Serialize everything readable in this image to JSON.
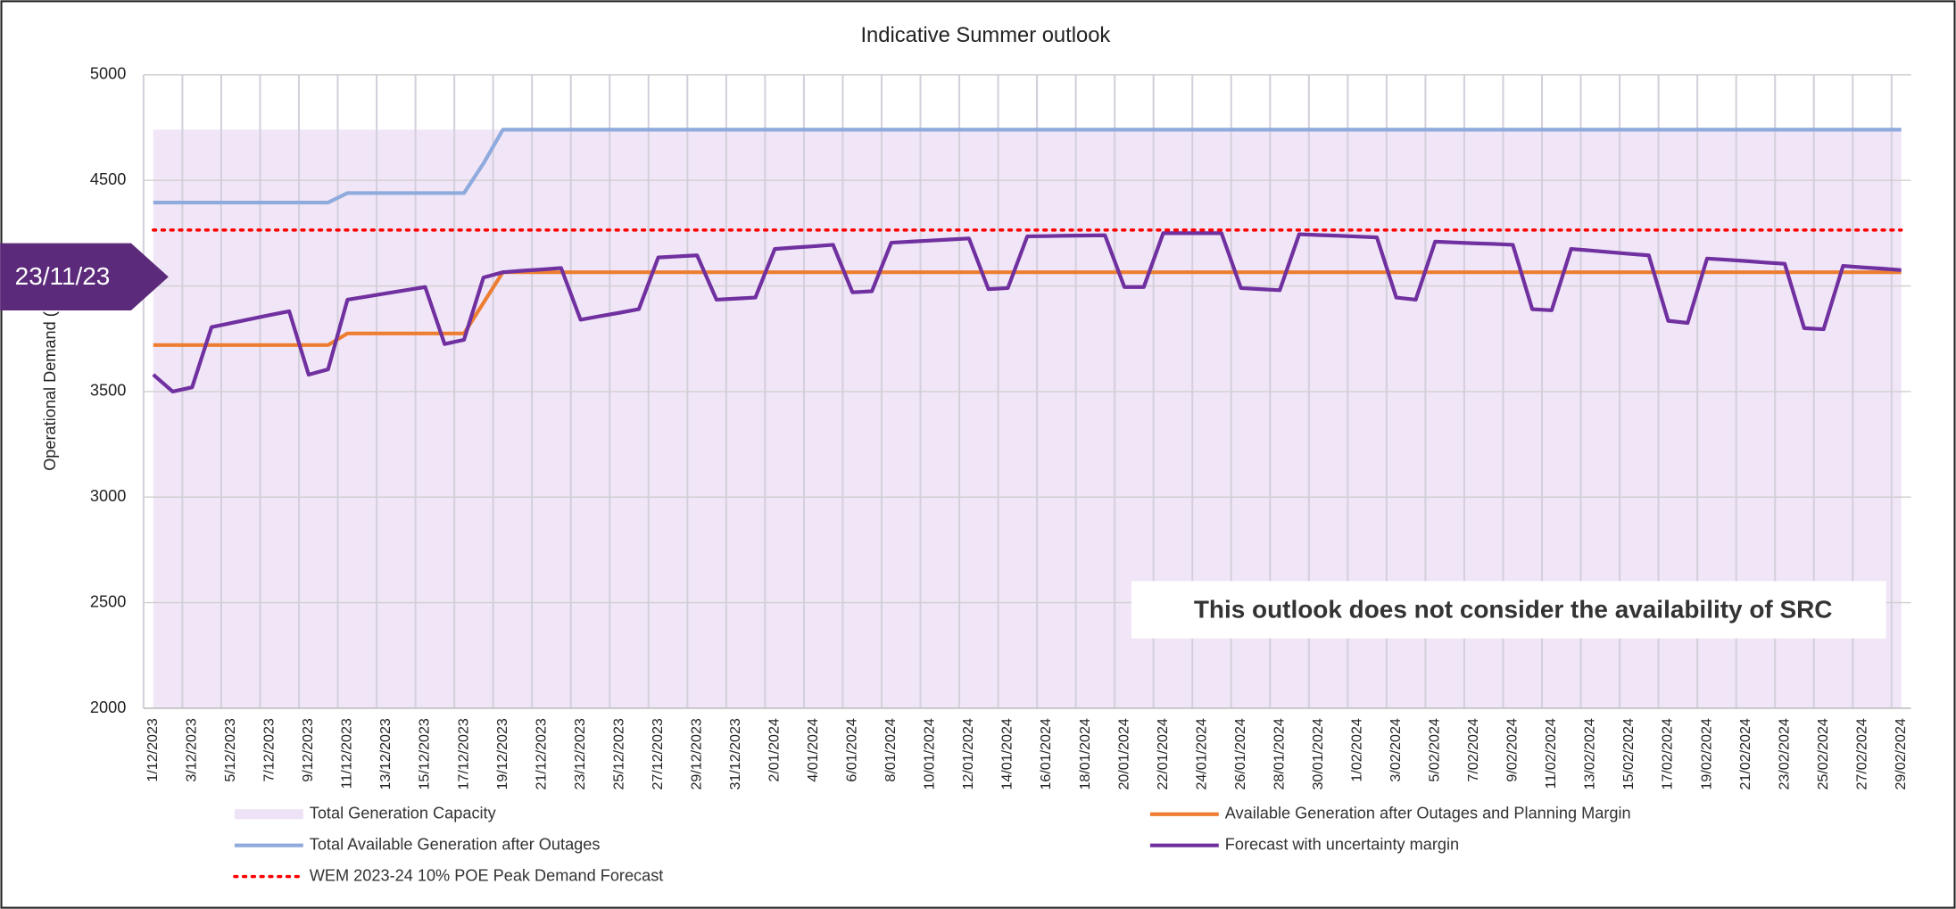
{
  "chart_data": {
    "type": "line",
    "title": "Indicative Summer outlook",
    "y_label": "Operational Demand (MW)",
    "ylim": [
      2000,
      5000
    ],
    "yticks": [
      2000,
      2500,
      3000,
      3500,
      4000,
      4500,
      5000
    ],
    "grid": true,
    "annotations": [
      "23/11/23",
      "This outlook does not consider the availability of SRC"
    ],
    "categories": [
      "1/12/2023",
      null,
      "3/12/2023",
      null,
      "5/12/2023",
      null,
      "7/12/2023",
      null,
      "9/12/2023",
      null,
      "11/12/2023",
      null,
      "13/12/2023",
      null,
      "15/12/2023",
      null,
      "17/12/2023",
      null,
      "19/12/2023",
      null,
      "21/12/2023",
      null,
      "23/12/2023",
      null,
      "25/12/2023",
      null,
      "27/12/2023",
      null,
      "29/12/2023",
      null,
      "31/12/2023",
      null,
      "2/01/2024",
      null,
      "4/01/2024",
      null,
      "6/01/2024",
      null,
      "8/01/2024",
      null,
      "10/01/2024",
      null,
      "12/01/2024",
      null,
      "14/01/2024",
      null,
      "16/01/2024",
      null,
      "18/01/2024",
      null,
      "20/01/2024",
      null,
      "22/01/2024",
      null,
      "24/01/2024",
      null,
      "26/01/2024",
      null,
      "28/01/2024",
      null,
      "30/01/2024",
      null,
      "1/02/2024",
      null,
      "3/02/2024",
      null,
      "5/02/2024",
      null,
      "7/02/2024",
      null,
      "9/02/2024",
      null,
      "11/02/2024",
      null,
      "13/02/2024",
      null,
      "15/02/2024",
      null,
      "17/02/2024",
      null,
      "19/02/2024",
      null,
      "21/02/2024",
      null,
      "23/02/2024",
      null,
      "25/02/2024",
      null,
      "27/02/2024",
      null,
      "29/02/2024"
    ],
    "series": [
      {
        "name": "Total Generation Capacity",
        "kind": "area",
        "color": "#eee2f6",
        "values": [
          4740,
          4740,
          4740,
          4740,
          4740,
          4740,
          4740,
          4740,
          4740,
          4740,
          4740,
          4740,
          4740,
          4740,
          4740,
          4740,
          4740,
          4740,
          4740,
          4740,
          4740,
          4740,
          4740,
          4740,
          4740,
          4740,
          4740,
          4740,
          4740,
          4740,
          4740,
          4740,
          4740,
          4740,
          4740,
          4740,
          4740,
          4740,
          4740,
          4740,
          4740,
          4740,
          4740,
          4740,
          4740,
          4740,
          4740,
          4740,
          4740,
          4740,
          4740,
          4740,
          4740,
          4740,
          4740,
          4740,
          4740,
          4740,
          4740,
          4740,
          4740,
          4740,
          4740,
          4740,
          4740,
          4740,
          4740,
          4740,
          4740,
          4740,
          4740,
          4740,
          4740,
          4740,
          4740,
          4740,
          4740,
          4740,
          4740,
          4740,
          4740,
          4740,
          4740,
          4740,
          4740,
          4740,
          4740,
          4740,
          4740,
          4740,
          4740
        ]
      },
      {
        "name": "Available Generation after Outages and Planning Margin",
        "kind": "line",
        "color": "#ed7d31",
        "values": [
          3720,
          3720,
          3720,
          3720,
          3720,
          3720,
          3720,
          3720,
          3720,
          3720,
          3775,
          3775,
          3775,
          3775,
          3775,
          3775,
          3775,
          3920,
          4065,
          4065,
          4065,
          4065,
          4065,
          4065,
          4065,
          4065,
          4065,
          4065,
          4065,
          4065,
          4065,
          4065,
          4065,
          4065,
          4065,
          4065,
          4065,
          4065,
          4065,
          4065,
          4065,
          4065,
          4065,
          4065,
          4065,
          4065,
          4065,
          4065,
          4065,
          4065,
          4065,
          4065,
          4065,
          4065,
          4065,
          4065,
          4065,
          4065,
          4065,
          4065,
          4065,
          4065,
          4065,
          4065,
          4065,
          4065,
          4065,
          4065,
          4065,
          4065,
          4065,
          4065,
          4065,
          4065,
          4065,
          4065,
          4065,
          4065,
          4065,
          4065,
          4065,
          4065,
          4065,
          4065,
          4065,
          4065,
          4065,
          4065,
          4065,
          4065,
          4065
        ]
      },
      {
        "name": "Total Available Generation after Outages",
        "kind": "line",
        "color": "#8faadc",
        "values": [
          4395,
          4395,
          4395,
          4395,
          4395,
          4395,
          4395,
          4395,
          4395,
          4395,
          4440,
          4440,
          4440,
          4440,
          4440,
          4440,
          4440,
          4580,
          4740,
          4740,
          4740,
          4740,
          4740,
          4740,
          4740,
          4740,
          4740,
          4740,
          4740,
          4740,
          4740,
          4740,
          4740,
          4740,
          4740,
          4740,
          4740,
          4740,
          4740,
          4740,
          4740,
          4740,
          4740,
          4740,
          4740,
          4740,
          4740,
          4740,
          4740,
          4740,
          4740,
          4740,
          4740,
          4740,
          4740,
          4740,
          4740,
          4740,
          4740,
          4740,
          4740,
          4740,
          4740,
          4740,
          4740,
          4740,
          4740,
          4740,
          4740,
          4740,
          4740,
          4740,
          4740,
          4740,
          4740,
          4740,
          4740,
          4740,
          4740,
          4740,
          4740,
          4740,
          4740,
          4740,
          4740,
          4740,
          4740,
          4740,
          4740,
          4740,
          4740
        ]
      },
      {
        "name": "Forecast with uncertainty margin",
        "kind": "line",
        "color": "#7030a0",
        "values": [
          3580,
          3500,
          3520,
          3805,
          3824,
          3843,
          3862,
          3880,
          3580,
          3605,
          3935,
          3950,
          3965,
          3980,
          3995,
          3725,
          3745,
          4040,
          4065,
          4072,
          4078,
          4085,
          3840,
          3857,
          3873,
          3890,
          4135,
          4140,
          4145,
          3935,
          3940,
          3945,
          4175,
          4182,
          4188,
          4195,
          3970,
          3975,
          4205,
          4210,
          4215,
          4220,
          4225,
          3985,
          3990,
          4235,
          4236,
          4238,
          4239,
          4240,
          3995,
          3995,
          4250,
          4250,
          4250,
          4250,
          3990,
          3985,
          3980,
          4245,
          4241,
          4238,
          4234,
          4230,
          3945,
          3935,
          4210,
          4206,
          4202,
          4199,
          4195,
          3890,
          3885,
          4175,
          4168,
          4160,
          4152,
          4145,
          3835,
          3825,
          4130,
          4124,
          4118,
          4111,
          4105,
          3800,
          3795,
          4095,
          4088,
          4082,
          4075
        ]
      },
      {
        "name": "WEM  2023-24 10% POE Peak Demand Forecast",
        "kind": "dotted",
        "color": "#ff0000",
        "values": [
          4265,
          4265,
          4265,
          4265,
          4265,
          4265,
          4265,
          4265,
          4265,
          4265,
          4265,
          4265,
          4265,
          4265,
          4265,
          4265,
          4265,
          4265,
          4265,
          4265,
          4265,
          4265,
          4265,
          4265,
          4265,
          4265,
          4265,
          4265,
          4265,
          4265,
          4265,
          4265,
          4265,
          4265,
          4265,
          4265,
          4265,
          4265,
          4265,
          4265,
          4265,
          4265,
          4265,
          4265,
          4265,
          4265,
          4265,
          4265,
          4265,
          4265,
          4265,
          4265,
          4265,
          4265,
          4265,
          4265,
          4265,
          4265,
          4265,
          4265,
          4265,
          4265,
          4265,
          4265,
          4265,
          4265,
          4265,
          4265,
          4265,
          4265,
          4265,
          4265,
          4265,
          4265,
          4265,
          4265,
          4265,
          4265,
          4265,
          4265,
          4265,
          4265,
          4265,
          4265,
          4265,
          4265,
          4265,
          4265,
          4265,
          4265,
          4265
        ]
      }
    ]
  }
}
